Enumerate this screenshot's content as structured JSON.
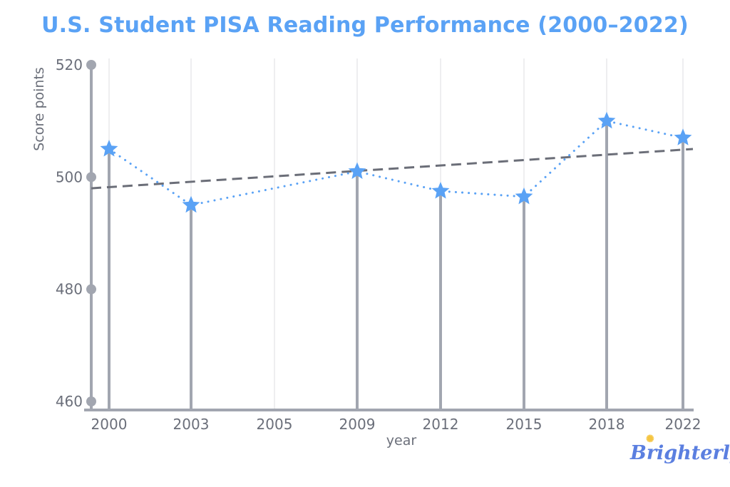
{
  "chart_data": {
    "type": "line",
    "title": "U.S. Student PISA Reading Performance (2000–2022)",
    "xlabel": "year",
    "ylabel": "Score points",
    "categories": [
      "2000",
      "2003",
      "2005",
      "2009",
      "2012",
      "2015",
      "2018",
      "2022"
    ],
    "series": [
      {
        "values": [
          505,
          495,
          null,
          501,
          497.5,
          496.5,
          510,
          507
        ],
        "color": "#5aa2f5",
        "marker": "star",
        "line_style": "dotted"
      }
    ],
    "trendline": {
      "start": 498,
      "end": 505,
      "color": "#6b6e78",
      "line_style": "dashed"
    },
    "ylim": [
      460,
      520
    ],
    "yticks": [
      460,
      480,
      500,
      520
    ],
    "grid": "vertical",
    "stem_color": "#a2a6b0"
  },
  "logo": "Brighterly"
}
